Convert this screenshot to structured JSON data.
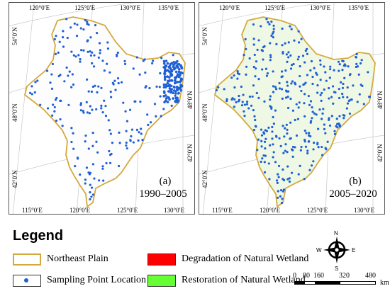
{
  "panels": [
    {
      "id": "a",
      "label": "(a)",
      "period": "1990–2005",
      "lon_top": [
        "120°0′E",
        "125°0′E",
        "130°0′E",
        "135°0′E"
      ],
      "lon_bottom": [
        "115°0′E",
        "120°0′E",
        "125°0′E",
        "130°0′E"
      ],
      "lat_left": [
        "54°0′N",
        "48°0′N",
        "42°0′N"
      ],
      "lat_right": [
        "48°0′N",
        "42°0′N"
      ]
    },
    {
      "id": "b",
      "label": "(b)",
      "period": "2005–2020",
      "lon_top": [
        "120°0′E",
        "125°0′E",
        "130°0′E",
        "135°0′E"
      ],
      "lon_bottom": [
        "115°0′E",
        "120°0′E",
        "125°0′E",
        "130°0′E"
      ],
      "lat_left": [
        "54°0′N",
        "48°0′N",
        "42°0′N"
      ],
      "lat_right": [
        "48°0′N",
        "42°0′N"
      ]
    }
  ],
  "legend": {
    "title": "Legend",
    "items": [
      {
        "label": "Northeast Plain",
        "color": "#d4a93c"
      },
      {
        "label": "Degradation of Natural Wetland",
        "color": "#ff0000"
      },
      {
        "label": "Sampling Point Location",
        "color": "#1f5fd6"
      },
      {
        "label": "Restoration of Natural Wetland",
        "color": "#66ff33"
      }
    ]
  },
  "compass": {
    "n": "N",
    "s": "S",
    "e": "E",
    "w": "W"
  },
  "scale_bar": {
    "ticks": [
      "0",
      "80",
      "160",
      "320",
      "480"
    ],
    "unit": "km"
  },
  "colors": {
    "points": "#1f5fd6",
    "boundary": "#d4a93c",
    "degradation": "#ff0000",
    "restoration": "#66ff33",
    "graticule": "#c8c8c8"
  }
}
